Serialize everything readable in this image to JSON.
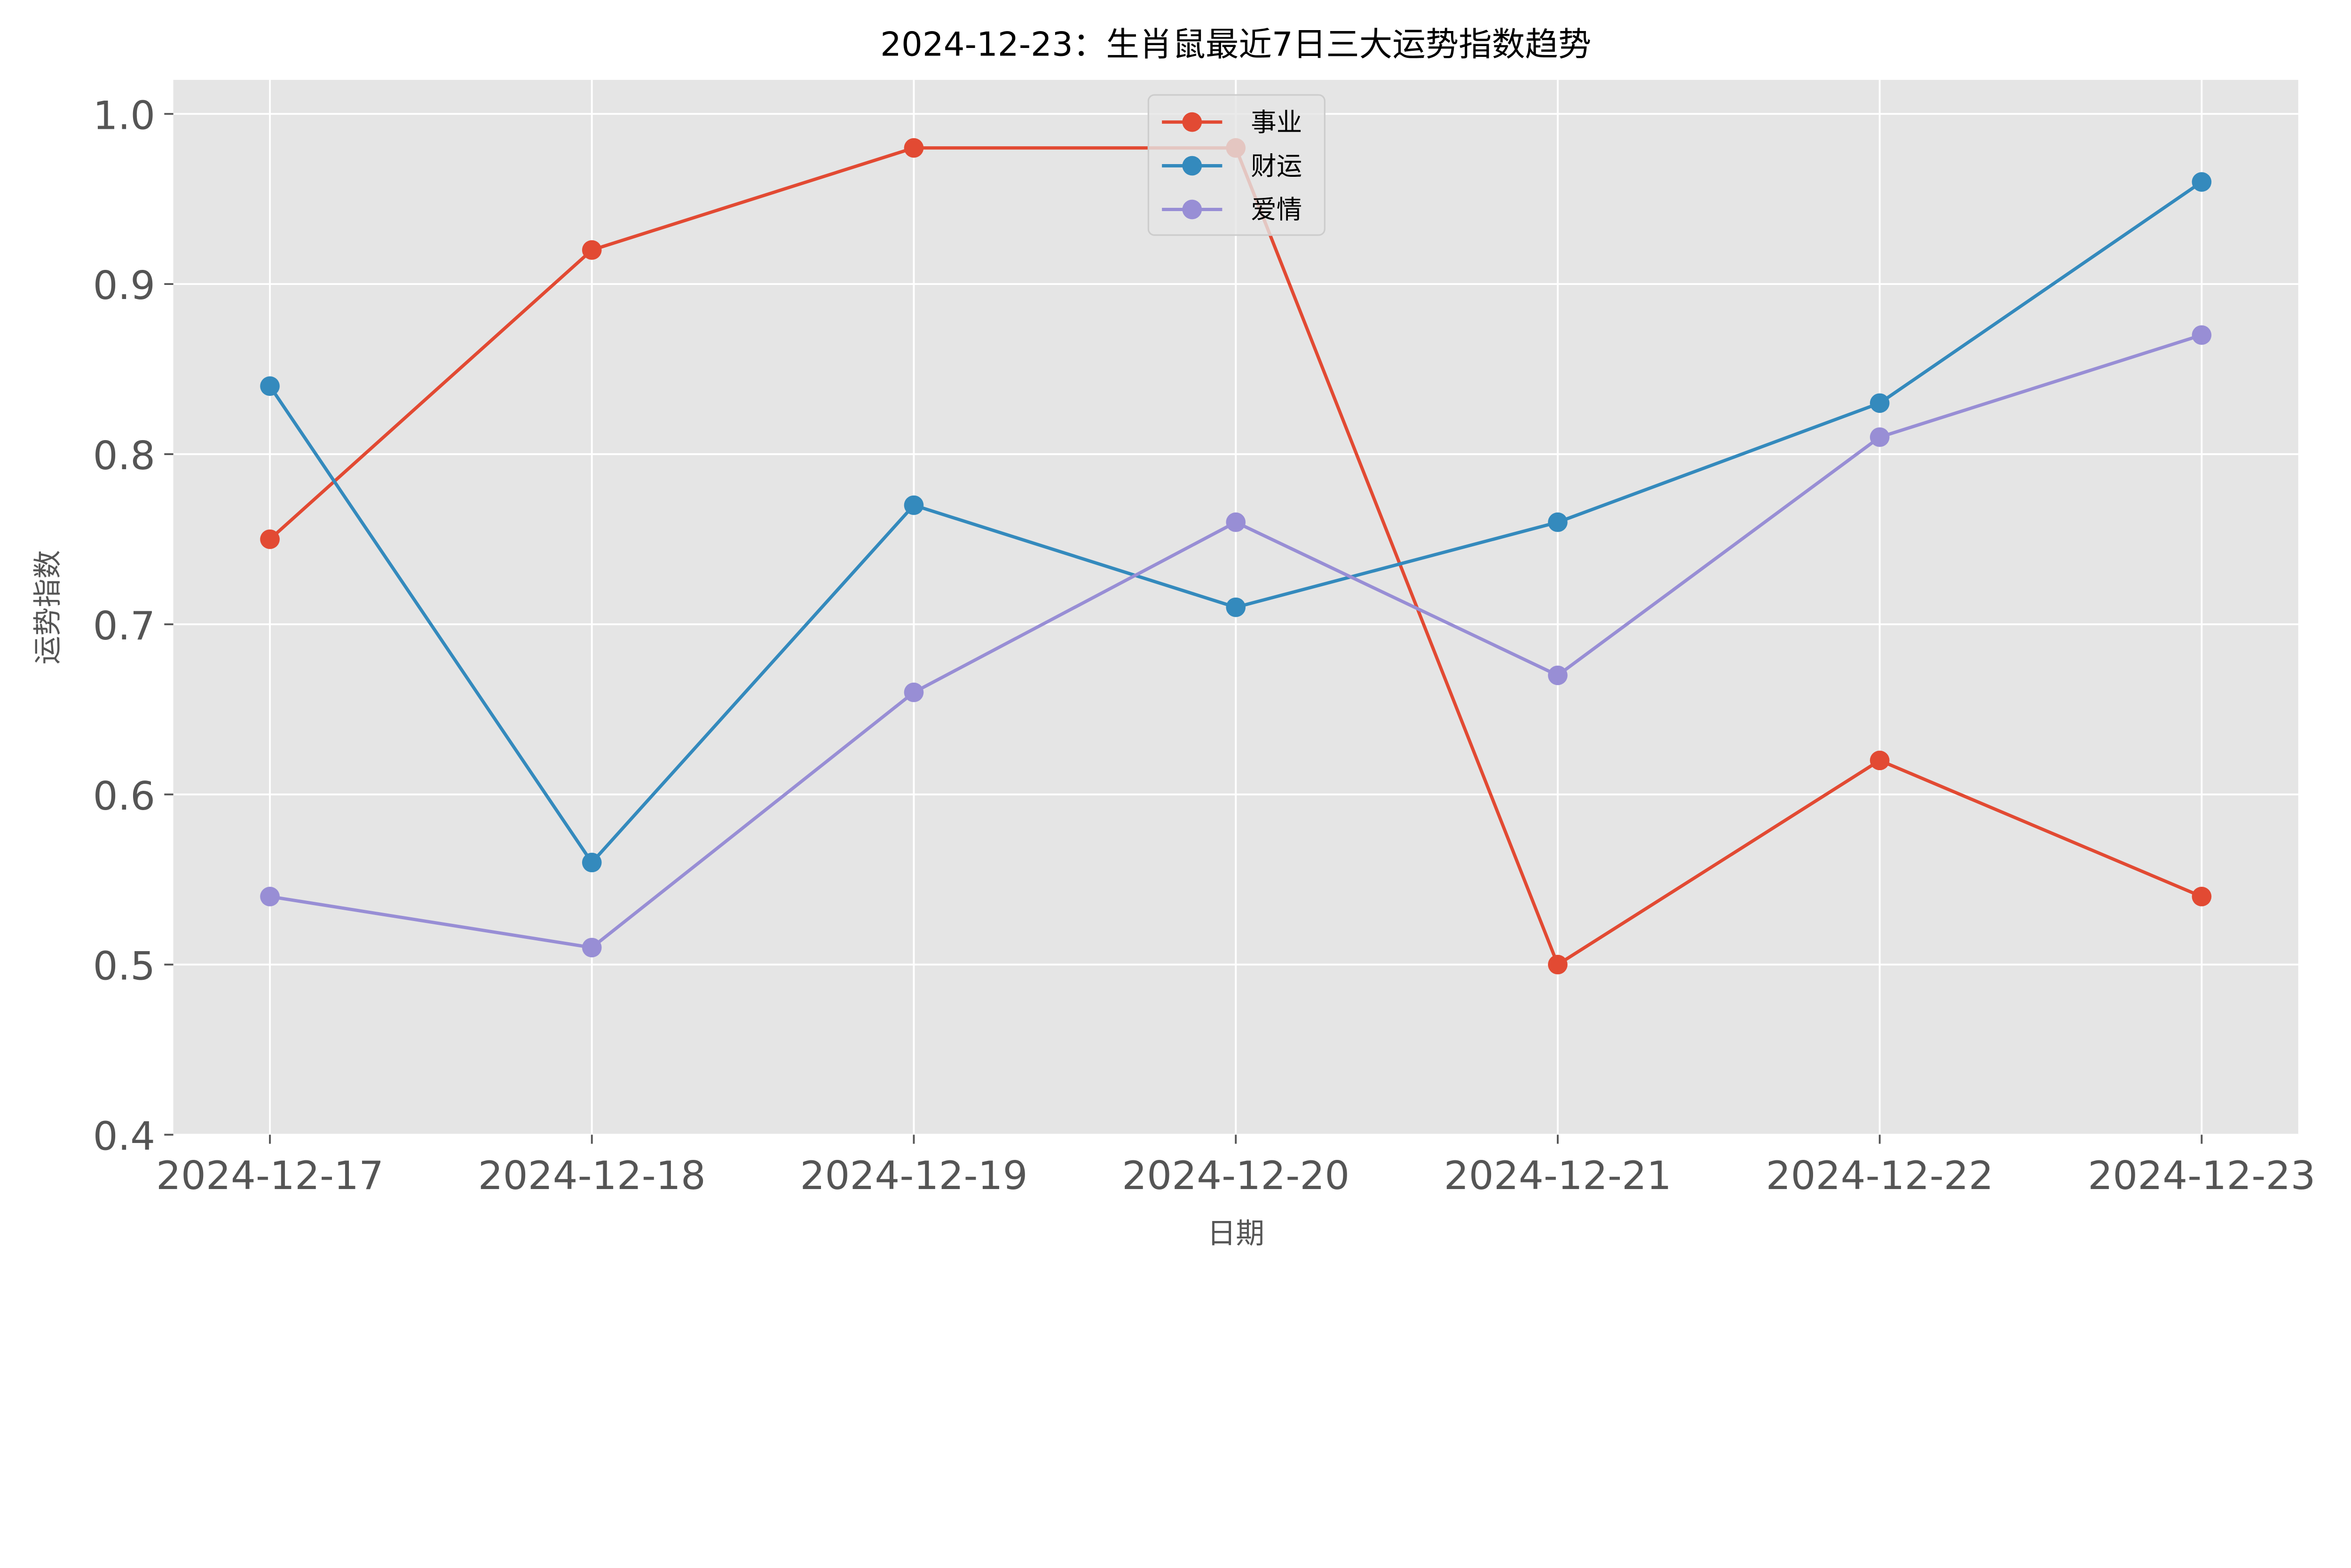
{
  "chart_data": {
    "type": "line",
    "title": "2024-12-23：生肖鼠最近7日三大运势指数趋势",
    "xlabel": "日期",
    "ylabel": "运势指数",
    "categories": [
      "2024-12-17",
      "2024-12-18",
      "2024-12-19",
      "2024-12-20",
      "2024-12-21",
      "2024-12-22",
      "2024-12-23"
    ],
    "ylim": [
      0.4,
      1.02
    ],
    "yticks": [
      "0.4",
      "0.5",
      "0.6",
      "0.7",
      "0.8",
      "0.9",
      "1.0"
    ],
    "grid": true,
    "legend_position": "top-center",
    "background": "#E5E5E5",
    "series": [
      {
        "name": "事业",
        "color": "#E24A33",
        "values": [
          0.75,
          0.92,
          0.98,
          0.98,
          0.5,
          0.62,
          0.54
        ]
      },
      {
        "name": "财运",
        "color": "#348ABD",
        "values": [
          0.84,
          0.56,
          0.77,
          0.71,
          0.76,
          0.83,
          0.96
        ]
      },
      {
        "name": "爱情",
        "color": "#988ED5",
        "values": [
          0.54,
          0.51,
          0.66,
          0.76,
          0.67,
          0.81,
          0.87
        ]
      }
    ]
  }
}
